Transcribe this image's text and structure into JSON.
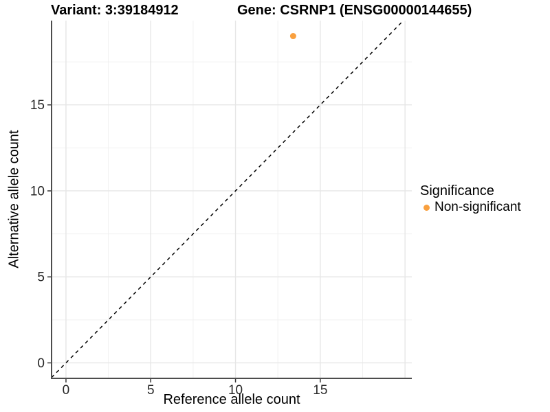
{
  "chart": {
    "titles": {
      "variant": "Variant: 3:39184912",
      "gene": "Gene: CSRNP1 (ENSG00000144655)"
    },
    "xlabel": "Reference allele count",
    "ylabel": "Alternative allele count",
    "legend": {
      "title": "Significance",
      "items": [
        {
          "label": "Non-significant",
          "color": "#F9A03F"
        }
      ]
    }
  },
  "chart_data": {
    "type": "scatter",
    "title": "Variant: 3:39184912 | Gene: CSRNP1 (ENSG00000144655)",
    "xlabel": "Reference allele count",
    "ylabel": "Alternative allele count",
    "xlim": [
      -0.85,
      20.4
    ],
    "ylim": [
      -0.9,
      19.9
    ],
    "x_breaks": [
      0,
      5,
      10,
      15
    ],
    "y_breaks": [
      0,
      5,
      10,
      15
    ],
    "x_grid_major": [
      0,
      5,
      10,
      15,
      20
    ],
    "y_grid_major": [
      0,
      5,
      10,
      15
    ],
    "x_grid_minor": [
      2.5,
      7.5,
      12.5,
      17.5
    ],
    "y_grid_minor": [
      2.5,
      7.5,
      12.5,
      17.5
    ],
    "grid": true,
    "legend_position": "right",
    "identity_line": {
      "type": "y=x",
      "style": "dashed",
      "color": "#000000",
      "dash": [
        5,
        5
      ]
    },
    "series": [
      {
        "name": "Non-significant",
        "color": "#F9A03F",
        "points": [
          {
            "x": 13.4,
            "y": 19
          }
        ]
      }
    ],
    "colors": {
      "point": "#F9A03F",
      "grid_major": "#E6E6E6",
      "grid_minor": "#F0F0F0",
      "axis_line": "#4D4D4D",
      "tick": "#333333",
      "tick_label": "#262626",
      "background": "#FFFFFF"
    }
  }
}
